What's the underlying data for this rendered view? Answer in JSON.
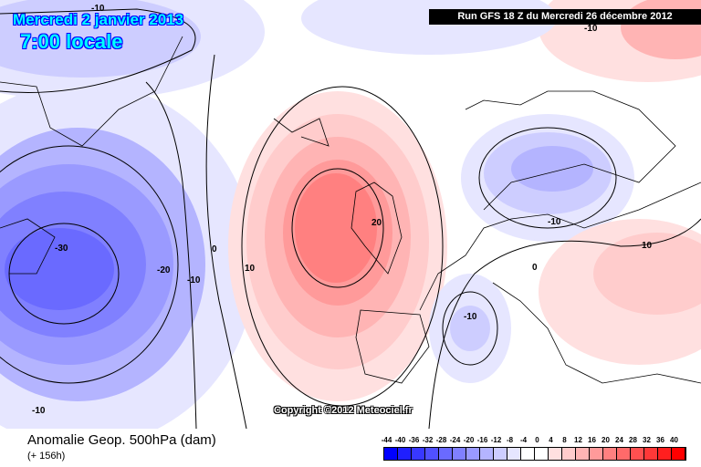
{
  "header": {
    "date": "Mercredi 2 janvier 2013",
    "time": "7:00 locale",
    "run": "Run GFS 18 Z du Mercredi 26 décembre 2012"
  },
  "footer": {
    "title": "Anomalie Geop. 500hPa (dam)",
    "subtitle": "(+ 156h)",
    "copyright": "Copyright ©2012 Meteociel.fr"
  },
  "contour_labels": [
    "-10",
    "-10",
    "-30",
    "-20",
    "-10",
    "0",
    "10",
    "20",
    "-10",
    "10",
    "0",
    "-10",
    "-10",
    "10"
  ],
  "legend": {
    "labels": [
      "-44",
      "-40",
      "-36",
      "-32",
      "-28",
      "-24",
      "-20",
      "-16",
      "-12",
      "-8",
      "-4",
      "0",
      "4",
      "8",
      "12",
      "16",
      "20",
      "24",
      "28",
      "32",
      "36",
      "40"
    ],
    "colors": [
      "#0000ff",
      "#1f1fff",
      "#3838ff",
      "#5050ff",
      "#6a6aff",
      "#8080ff",
      "#9a9aff",
      "#b4b4ff",
      "#cdcdff",
      "#e6e6ff",
      "#ffffff",
      "#ffffff",
      "#ffe0e0",
      "#ffcccc",
      "#ffb4b4",
      "#ff9a9a",
      "#ff8080",
      "#ff6a6a",
      "#ff5050",
      "#ff3838",
      "#ff1f1f",
      "#ff0000"
    ]
  }
}
